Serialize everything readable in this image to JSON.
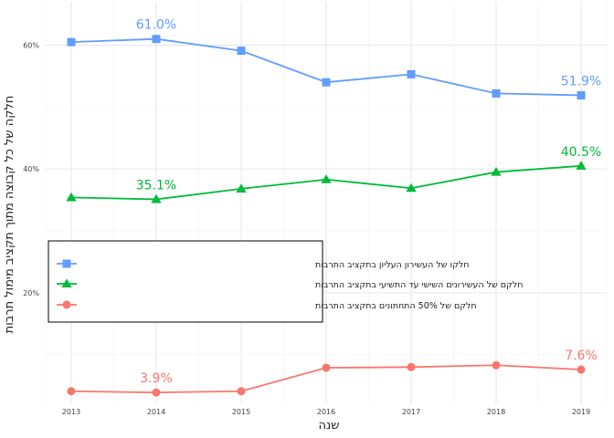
{
  "chart_data": {
    "type": "line",
    "title": "",
    "xlabel": "שנה",
    "ylabel": "חלקה של כל קבוצה מתוך תקציב מימול תרבות",
    "x": [
      2013,
      2014,
      2015,
      2016,
      2017,
      2018,
      2019
    ],
    "x_tick_labels": [
      "2013",
      "2014",
      "2015",
      "2016",
      "2017",
      "2018",
      "2019"
    ],
    "y_ticks": [
      20,
      40,
      60
    ],
    "y_tick_labels": [
      "20%",
      "40%",
      "60%"
    ],
    "ylim": [
      2,
      67
    ],
    "grid": true,
    "legend_position": "left",
    "series": [
      {
        "name": "חלקו של העשירון העליון בתקציב התרבות",
        "marker": "square",
        "color": "#619CFF",
        "values": [
          60.5,
          61.0,
          59.1,
          54.0,
          55.3,
          52.2,
          51.9
        ],
        "data_labels": [
          {
            "x": 2014,
            "y": 61.0,
            "text": "61.0%"
          },
          {
            "x": 2019,
            "y": 51.9,
            "text": "51.9%"
          }
        ]
      },
      {
        "name": "חלקם של העשירונים השישי עד התשיעי בתקציב התרבות",
        "marker": "triangle",
        "color": "#00BA38",
        "values": [
          35.4,
          35.1,
          36.8,
          38.3,
          36.9,
          39.5,
          40.5
        ],
        "data_labels": [
          {
            "x": 2014,
            "y": 35.1,
            "text": "35.1%"
          },
          {
            "x": 2019,
            "y": 40.5,
            "text": "40.5%"
          }
        ]
      },
      {
        "name": "חלקם של 50% התחתונים בתקציב התרבות",
        "marker": "circle",
        "color": "#F8766D",
        "values": [
          4.1,
          3.9,
          4.1,
          7.9,
          8.0,
          8.3,
          7.6
        ],
        "data_labels": [
          {
            "x": 2014,
            "y": 3.9,
            "text": "3.9%"
          },
          {
            "x": 2019,
            "y": 7.6,
            "text": "7.6%"
          }
        ]
      }
    ]
  }
}
